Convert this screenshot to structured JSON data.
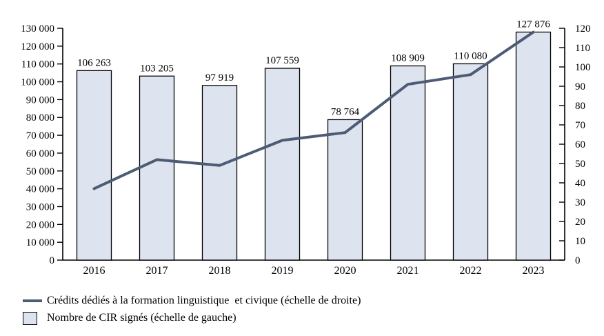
{
  "chart_data": {
    "type": "combo",
    "categories": [
      "2016",
      "2017",
      "2018",
      "2019",
      "2020",
      "2021",
      "2022",
      "2023"
    ],
    "series": [
      {
        "name": "Nombre de CIR signés (échelle de gauche)",
        "type": "bar",
        "axis": "left",
        "values": [
          106263,
          103205,
          97919,
          107559,
          78764,
          108909,
          110080,
          127876
        ],
        "labels": [
          "106 263",
          "103 205",
          "97 919",
          "107 559",
          "78 764",
          "108 909",
          "110 080",
          "127 876"
        ],
        "fill": "#dde3ef",
        "stroke": "#000000"
      },
      {
        "name": "Crédits dédiés à la formation linguistique  et civique (échelle de droite)",
        "type": "line",
        "axis": "right",
        "values": [
          37,
          52,
          49,
          62,
          66,
          91,
          96,
          118
        ],
        "color": "#4d5c74"
      }
    ],
    "left_axis": {
      "min": 0,
      "max": 130000,
      "step": 10000,
      "tick_labels": [
        "0",
        "10 000",
        "20 000",
        "30 000",
        "40 000",
        "50 000",
        "60 000",
        "70 000",
        "80 000",
        "90 000",
        "100 000",
        "110 000",
        "120 000",
        "130 000"
      ]
    },
    "right_axis": {
      "min": 0,
      "max": 120,
      "step": 10,
      "tick_labels": [
        "0",
        "10",
        "20",
        "30",
        "40",
        "50",
        "60",
        "70",
        "80",
        "90",
        "100",
        "110",
        "120"
      ]
    },
    "legend_position": "bottom-left",
    "grid": false,
    "legend_items": [
      {
        "swatch": "line",
        "label": "Crédits dédiés à la formation linguistique  et civique (échelle de droite)"
      },
      {
        "swatch": "box",
        "label": "Nombre de CIR signés (échelle de gauche)"
      }
    ],
    "colors": {
      "bar_fill": "#dde3ef",
      "bar_border": "#000000",
      "line": "#4d5c74",
      "axis": "#000000",
      "text": "#000000"
    }
  }
}
